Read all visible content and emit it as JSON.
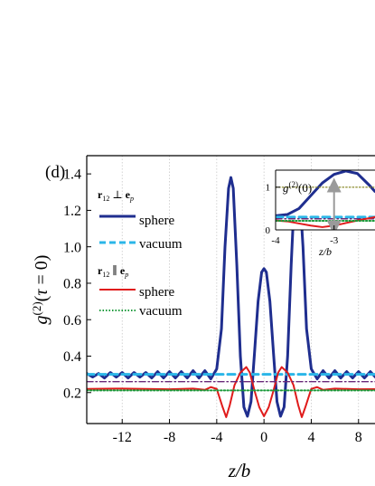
{
  "panel_label": "(d)",
  "colors": {
    "sphere_perp": "#1f2e8f",
    "vacuum_perp": "#2bb6e8",
    "sphere_par": "#e01b1b",
    "vacuum_par": "#1a9a3a",
    "ref_purple": "#6a2a7a",
    "ref_olive": "#8a8a2a",
    "arrow": "#9a9a9a"
  },
  "chart_data": [
    {
      "type": "line",
      "xlabel": "z/b",
      "ylabel": "g(2)(τ = 0)",
      "xlim": [
        -15,
        11
      ],
      "ylim": [
        0.03,
        1.5
      ],
      "xticks": [
        "-12",
        "-8",
        "-4",
        "0",
        "4",
        "8"
      ],
      "xtick_values": [
        -12,
        -8,
        -4,
        0,
        4,
        8
      ],
      "yticks": [
        "0.2",
        "0.4",
        "0.6",
        "0.8",
        "1.0",
        "1.2",
        "1.4"
      ],
      "ytick_values": [
        0.2,
        0.4,
        0.6,
        0.8,
        1.0,
        1.2,
        1.4
      ],
      "grid": "vertical dotted",
      "legend": [
        {
          "group": "r12 ⊥ ep",
          "entries": [
            {
              "label": "sphere",
              "series": "sphere_perp"
            },
            {
              "label": "vacuum",
              "series": "vacuum_perp"
            }
          ]
        },
        {
          "group": "r12 ∥ ep",
          "entries": [
            {
              "label": "sphere",
              "series": "sphere_par"
            },
            {
              "label": "vacuum",
              "series": "vacuum_par"
            }
          ]
        }
      ],
      "legend_placement": "left",
      "series": [
        {
          "key": "sphere_perp",
          "style": "solid",
          "points": [
            [
              -15,
              0.305
            ],
            [
              -14.5,
              0.285
            ],
            [
              -14,
              0.305
            ],
            [
              -13.5,
              0.28
            ],
            [
              -13,
              0.31
            ],
            [
              -12.5,
              0.285
            ],
            [
              -12,
              0.31
            ],
            [
              -11.5,
              0.28
            ],
            [
              -11,
              0.31
            ],
            [
              -10.5,
              0.285
            ],
            [
              -10,
              0.31
            ],
            [
              -9.5,
              0.28
            ],
            [
              -9,
              0.315
            ],
            [
              -8.5,
              0.28
            ],
            [
              -8,
              0.315
            ],
            [
              -7.5,
              0.28
            ],
            [
              -7,
              0.315
            ],
            [
              -6.5,
              0.28
            ],
            [
              -6,
              0.32
            ],
            [
              -5.5,
              0.28
            ],
            [
              -5,
              0.32
            ],
            [
              -4.5,
              0.275
            ],
            [
              -4,
              0.33
            ],
            [
              -3.6,
              0.55
            ],
            [
              -3.3,
              1.0
            ],
            [
              -3.0,
              1.32
            ],
            [
              -2.8,
              1.38
            ],
            [
              -2.6,
              1.32
            ],
            [
              -2.3,
              0.9
            ],
            [
              -2,
              0.4
            ],
            [
              -1.7,
              0.12
            ],
            [
              -1.4,
              0.07
            ],
            [
              -1.1,
              0.15
            ],
            [
              -0.8,
              0.42
            ],
            [
              -0.5,
              0.7
            ],
            [
              -0.2,
              0.86
            ],
            [
              0,
              0.88
            ],
            [
              0.2,
              0.86
            ],
            [
              0.5,
              0.7
            ],
            [
              0.8,
              0.42
            ],
            [
              1.1,
              0.15
            ],
            [
              1.4,
              0.07
            ],
            [
              1.7,
              0.12
            ],
            [
              2,
              0.4
            ],
            [
              2.3,
              0.9
            ],
            [
              2.6,
              1.32
            ],
            [
              2.8,
              1.38
            ],
            [
              3.0,
              1.32
            ],
            [
              3.3,
              1.0
            ],
            [
              3.6,
              0.55
            ],
            [
              4,
              0.33
            ],
            [
              4.5,
              0.275
            ],
            [
              5,
              0.32
            ],
            [
              5.5,
              0.28
            ],
            [
              6,
              0.32
            ],
            [
              6.5,
              0.28
            ],
            [
              7,
              0.315
            ],
            [
              7.5,
              0.28
            ],
            [
              8,
              0.315
            ],
            [
              8.5,
              0.28
            ],
            [
              9,
              0.315
            ],
            [
              9.5,
              0.28
            ],
            [
              10,
              0.31
            ],
            [
              10.5,
              0.285
            ],
            [
              11,
              0.305
            ]
          ]
        },
        {
          "key": "vacuum_perp",
          "style": "dashed",
          "points": [
            [
              -15,
              0.3
            ],
            [
              11,
              0.3
            ]
          ]
        },
        {
          "key": "sphere_par",
          "style": "solid",
          "points": [
            [
              -15,
              0.22
            ],
            [
              -12,
              0.222
            ],
            [
              -8,
              0.218
            ],
            [
              -6,
              0.222
            ],
            [
              -5,
              0.215
            ],
            [
              -4.5,
              0.23
            ],
            [
              -4,
              0.22
            ],
            [
              -3.5,
              0.12
            ],
            [
              -3.2,
              0.065
            ],
            [
              -2.9,
              0.13
            ],
            [
              -2.5,
              0.24
            ],
            [
              -2,
              0.31
            ],
            [
              -1.5,
              0.34
            ],
            [
              -1.2,
              0.31
            ],
            [
              -0.8,
              0.21
            ],
            [
              -0.4,
              0.12
            ],
            [
              0,
              0.07
            ],
            [
              0.4,
              0.12
            ],
            [
              0.8,
              0.21
            ],
            [
              1.2,
              0.31
            ],
            [
              1.5,
              0.34
            ],
            [
              2,
              0.31
            ],
            [
              2.5,
              0.24
            ],
            [
              2.9,
              0.13
            ],
            [
              3.2,
              0.065
            ],
            [
              3.5,
              0.12
            ],
            [
              4,
              0.22
            ],
            [
              4.5,
              0.23
            ],
            [
              5,
              0.215
            ],
            [
              6,
              0.222
            ],
            [
              8,
              0.218
            ],
            [
              11,
              0.22
            ]
          ]
        },
        {
          "key": "vacuum_par",
          "style": "dotted",
          "points": [
            [
              -15,
              0.212
            ],
            [
              11,
              0.212
            ]
          ]
        },
        {
          "key": "ref_purple",
          "style": "dashdot",
          "points": [
            [
              -15,
              0.26
            ],
            [
              11,
              0.26
            ]
          ]
        }
      ]
    },
    {
      "type": "line",
      "xlabel": "z/b",
      "annotation": "g(2)(0)",
      "xticks": [
        "-4",
        "-3"
      ],
      "xtick_values": [
        -4,
        -3
      ],
      "yticks": [
        "0",
        "1"
      ],
      "ytick_values": [
        0,
        1
      ],
      "xlim": [
        -4,
        -2.3
      ],
      "ylim": [
        0,
        1.4
      ],
      "series": [
        {
          "key": "sphere_perp",
          "style": "solid",
          "points": [
            [
              -4,
              0.33
            ],
            [
              -3.8,
              0.36
            ],
            [
              -3.6,
              0.5
            ],
            [
              -3.4,
              0.8
            ],
            [
              -3.2,
              1.1
            ],
            [
              -3.0,
              1.3
            ],
            [
              -2.8,
              1.38
            ],
            [
              -2.6,
              1.32
            ],
            [
              -2.4,
              1.05
            ],
            [
              -2.3,
              0.9
            ]
          ]
        },
        {
          "key": "vacuum_perp",
          "style": "dashed",
          "points": [
            [
              -4,
              0.3
            ],
            [
              -2.3,
              0.3
            ]
          ]
        },
        {
          "key": "ref_purple",
          "style": "dashdot",
          "points": [
            [
              -4,
              0.26
            ],
            [
              -2.3,
              0.26
            ]
          ]
        },
        {
          "key": "sphere_par",
          "style": "solid",
          "points": [
            [
              -4,
              0.22
            ],
            [
              -3.8,
              0.2
            ],
            [
              -3.6,
              0.15
            ],
            [
              -3.4,
              0.1
            ],
            [
              -3.2,
              0.065
            ],
            [
              -3.0,
              0.1
            ],
            [
              -2.8,
              0.16
            ],
            [
              -2.6,
              0.22
            ],
            [
              -2.3,
              0.3
            ]
          ]
        },
        {
          "key": "vacuum_par",
          "style": "dotted",
          "points": [
            [
              -4,
              0.212
            ],
            [
              -2.3,
              0.212
            ]
          ]
        },
        {
          "key": "ref_olive",
          "style": "dotted",
          "points": [
            [
              -4,
              1.0
            ],
            [
              -2.3,
              1.0
            ]
          ]
        }
      ],
      "arrows": [
        {
          "x": -3.0,
          "from": 0.22,
          "to": 1.05
        },
        {
          "x": -3.0,
          "from": 0.28,
          "to": 0.05
        }
      ]
    }
  ]
}
